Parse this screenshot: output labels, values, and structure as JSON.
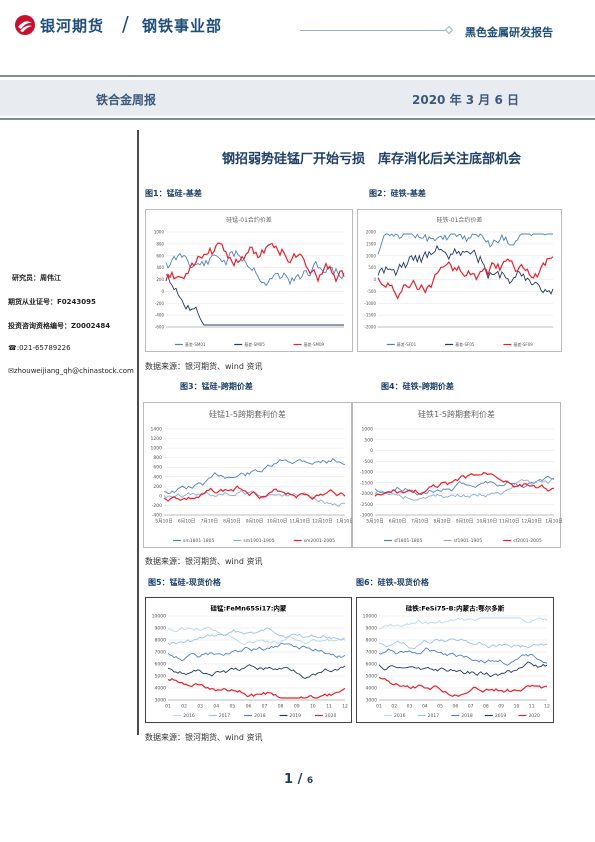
{
  "header": {
    "company": "银河期货",
    "slash": "/",
    "department": "钢铁事业部",
    "report_type": "黑色金属研发报告"
  },
  "band": {
    "report_name": "铁合金周报",
    "date": "2020 年 3 月 6 日"
  },
  "title": "钢招弱势硅锰厂开始亏损　库存消化后关注底部机会",
  "analyst": {
    "researcher": "研究员：周伟江",
    "practice_cert": "期货从业证号：F0243095",
    "consult_cert": "投资咨询资格编号：Z0002484",
    "phone": "☎:021-65789226",
    "email": "zhouweijiang_qh@chinastock.com"
  },
  "figures": [
    {
      "label": "图1：锰硅-基差"
    },
    {
      "label": "图2：硅铁-基差"
    },
    {
      "label": "图3：锰硅-跨期价差"
    },
    {
      "label": "图4：硅铁-跨期价差"
    },
    {
      "label": "图5：锰硅-现货价格"
    },
    {
      "label": "图6：硅铁-现货价格"
    }
  ],
  "sources": [
    "数据来源：银河期货、wind 资讯",
    "数据来源：银河期货、wind 资讯",
    "数据来源：银河期货、wind 资讯"
  ],
  "page": {
    "current": "1",
    "sep": "/",
    "total": "6"
  },
  "colors": {
    "blue": "#1f3f66",
    "red": "#e8202a",
    "navy": "#1f3864",
    "steel": "#4f81bd",
    "light": "#9dc3e6"
  },
  "chart_data": [
    {
      "type": "line",
      "title": "硅锰-01合约价差",
      "ylim": [
        -600,
        1000
      ],
      "yticks": [
        "1000",
        "800",
        "600",
        "400",
        "200",
        "0",
        "-200",
        "-400",
        "-600"
      ],
      "series": [
        {
          "name": "基差-SM01"
        },
        {
          "name": "基差-SM05"
        },
        {
          "name": "基差-SM09"
        }
      ]
    },
    {
      "type": "line",
      "title": "硅铁-01合约价差",
      "ylim": [
        -2000,
        2000
      ],
      "yticks": [
        "2000",
        "1500",
        "1000",
        "500",
        "0",
        "-500",
        "-1000",
        "-1500",
        "-2000"
      ],
      "series": [
        {
          "name": "基差-SF01"
        },
        {
          "name": "基差-SF05"
        },
        {
          "name": "基差-SF09"
        }
      ]
    },
    {
      "type": "line",
      "title": "硅锰1-5跨期套利价差",
      "ylim": [
        -400,
        1400
      ],
      "yticks": [
        "1400",
        "1200",
        "1000",
        "800",
        "600",
        "400",
        "200",
        "0",
        "-200",
        "-400"
      ],
      "xticks": [
        "5月10日",
        "6月10日",
        "7月10日",
        "8月10日",
        "9月10日",
        "10月10日",
        "11月10日",
        "12月10日",
        "1月10日"
      ],
      "series": [
        {
          "name": "sm1801-1805"
        },
        {
          "name": "sm1901-1905"
        },
        {
          "name": "sm2001-2005"
        }
      ]
    },
    {
      "type": "line",
      "title": "硅铁1-5跨期套利价差",
      "ylim": [
        -3000,
        1000
      ],
      "yticks": [
        "1000",
        "500",
        "0",
        "-500",
        "-1000",
        "-1500",
        "-2000",
        "-2500",
        "-3000"
      ],
      "xticks": [
        "5月10日",
        "6月10日",
        "7月10日",
        "8月10日",
        "9月10日",
        "10月10日",
        "11月10日",
        "12月10日",
        "1月10日"
      ],
      "series": [
        {
          "name": "sf1801-1805"
        },
        {
          "name": "sf1901-1905"
        },
        {
          "name": "sf2001-2005"
        }
      ]
    },
    {
      "type": "line",
      "title": "硅锰:FeMn65Si17:内蒙",
      "ylim": [
        3000,
        10000
      ],
      "yticks": [
        "10000",
        "9000",
        "8000",
        "7000",
        "6000",
        "5000",
        "4000",
        "3000"
      ],
      "xticks": [
        "01",
        "02",
        "03",
        "04",
        "05",
        "06",
        "07",
        "08",
        "09",
        "10",
        "11",
        "12"
      ],
      "series": [
        {
          "name": "2016"
        },
        {
          "name": "2017"
        },
        {
          "name": "2018"
        },
        {
          "name": "2019"
        },
        {
          "name": "2020"
        }
      ]
    },
    {
      "type": "line",
      "title": "硅铁:FeSi75-B:内蒙古:鄂尔多斯",
      "ylim": [
        3000,
        10000
      ],
      "yticks": [
        "10000",
        "9000",
        "8000",
        "7000",
        "6000",
        "5000",
        "4000",
        "3000"
      ],
      "xticks": [
        "01",
        "02",
        "03",
        "04",
        "05",
        "06",
        "07",
        "08",
        "09",
        "10",
        "11",
        "12"
      ],
      "series": [
        {
          "name": "2016"
        },
        {
          "name": "2017"
        },
        {
          "name": "2018"
        },
        {
          "name": "2019"
        },
        {
          "name": "2020"
        }
      ]
    }
  ]
}
